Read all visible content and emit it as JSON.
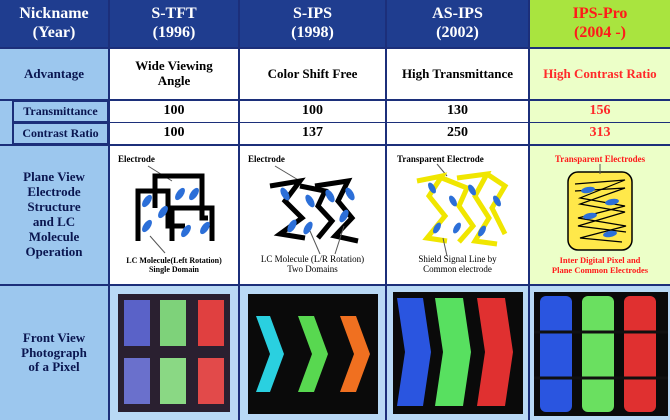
{
  "header": {
    "label": [
      "Nickname",
      "(Year)"
    ],
    "columns": [
      {
        "name": "S-TFT",
        "year": "(1996)"
      },
      {
        "name": "S-IPS",
        "year": "(1998)"
      },
      {
        "name": "AS-IPS",
        "year": "(2002)"
      },
      {
        "name": "IPS-Pro",
        "year": "(2004 -)"
      }
    ]
  },
  "advantage": {
    "label": "Advantage",
    "values": [
      "Wide Viewing Angle",
      "Color Shift Free",
      "High Transmittance",
      "High Contrast Ratio"
    ]
  },
  "transmittance": {
    "label": "Transmittance",
    "values": [
      "100",
      "100",
      "130",
      "156"
    ]
  },
  "contrast": {
    "label": "Contrast Ratio",
    "values": [
      "100",
      "137",
      "250",
      "313"
    ]
  },
  "plane_view": {
    "label": [
      "Plane View",
      "Electrode",
      "Structure",
      "and LC",
      "Molecule",
      "Operation"
    ],
    "diagrams": [
      {
        "top_label": "Electrode",
        "caption": [
          "LC Molecule(Left Rotation)",
          "Single Domain"
        ]
      },
      {
        "top_label": "Electrode",
        "caption": [
          "LC Molecule (L/R Rotation)",
          "Two Domains"
        ]
      },
      {
        "top_label": "Transparent Electrode",
        "caption": [
          "Shield  Signal Line by",
          "Common electrode"
        ]
      },
      {
        "top_label": "Transparent Electrodes",
        "caption": [
          "Inter Digital Pixel and",
          "Plane Common Electrodes"
        ]
      }
    ]
  },
  "front_view": {
    "label": [
      "Front View",
      "Photograph",
      "of a Pixel"
    ]
  },
  "colors": {
    "header_bg": "#1f3d8f",
    "label_bg": "#9cc7ee",
    "pro_header_bg": "#a9e43f",
    "pro_cell_bg": "#ecffc8",
    "pro_text": "#ff1a1a"
  }
}
